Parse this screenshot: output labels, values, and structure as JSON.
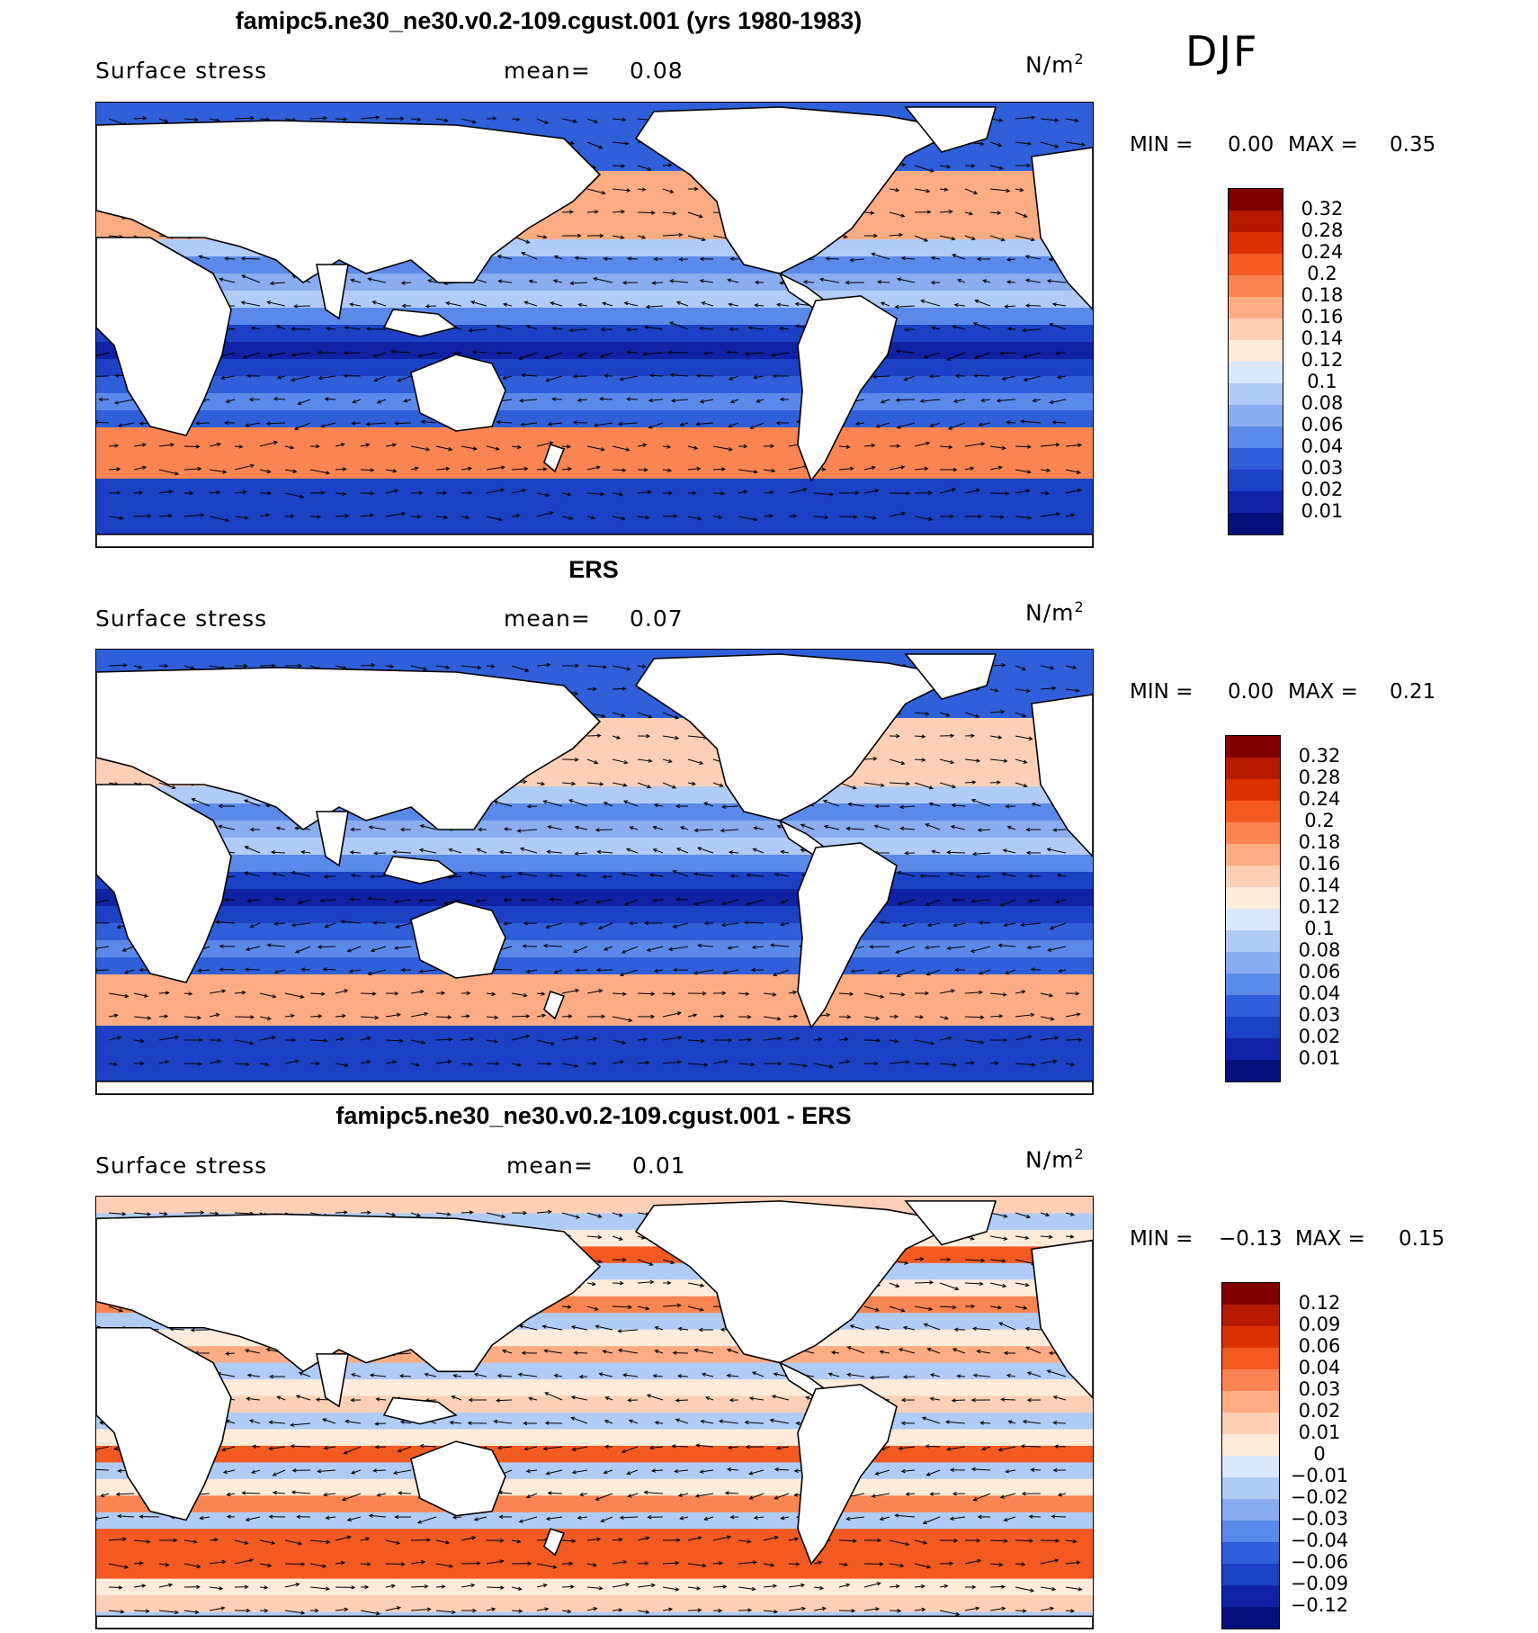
{
  "season": "DJF",
  "panels": [
    {
      "title": "famipc5.ne30_ne30.v0.2-109.cgust.001 (yrs 1980-1983)",
      "variable": "Surface stress",
      "mean_label": "mean=",
      "mean_value": "0.08",
      "units_base": "N/m",
      "units_exp": "2",
      "min_label": "MIN =",
      "min_value": "0.00",
      "max_label": "MAX =",
      "max_value": "0.35",
      "cbar_levels": [
        "0.32",
        "0.28",
        "0.24",
        "0.2",
        "0.18",
        "0.16",
        "0.14",
        "0.12",
        "0.1",
        "0.08",
        "0.06",
        "0.04",
        "0.03",
        "0.02",
        "0.01"
      ],
      "cbar_colors": [
        "#800000",
        "#b51a00",
        "#dd3000",
        "#f25a22",
        "#fb8552",
        "#fcac83",
        "#fdd0b5",
        "#feebda",
        "#d9e8fa",
        "#b0cbf5",
        "#8aadf0",
        "#5b89ea",
        "#2f5fd9",
        "#1c41c4",
        "#0f22a3",
        "#05107a"
      ]
    },
    {
      "title": "ERS",
      "variable": "Surface stress",
      "mean_label": "mean=",
      "mean_value": "0.07",
      "units_base": "N/m",
      "units_exp": "2",
      "min_label": "MIN =",
      "min_value": "0.00",
      "max_label": "MAX =",
      "max_value": "0.21",
      "cbar_levels": [
        "0.32",
        "0.28",
        "0.24",
        "0.2",
        "0.18",
        "0.16",
        "0.14",
        "0.12",
        "0.1",
        "0.08",
        "0.06",
        "0.04",
        "0.03",
        "0.02",
        "0.01"
      ],
      "cbar_colors": [
        "#800000",
        "#b51a00",
        "#dd3000",
        "#f25a22",
        "#fb8552",
        "#fcac83",
        "#fdd0b5",
        "#feebda",
        "#d9e8fa",
        "#b0cbf5",
        "#8aadf0",
        "#5b89ea",
        "#2f5fd9",
        "#1c41c4",
        "#0f22a3",
        "#05107a"
      ]
    },
    {
      "title": "famipc5.ne30_ne30.v0.2-109.cgust.001 - ERS",
      "variable": "Surface stress",
      "mean_label": "mean=",
      "mean_value": "0.01",
      "units_base": "N/m",
      "units_exp": "2",
      "min_label": "MIN =",
      "min_value": "−0.13",
      "max_label": "MAX =",
      "max_value": "0.15",
      "cbar_levels": [
        "0.12",
        "0.09",
        "0.06",
        "0.04",
        "0.03",
        "0.02",
        "0.01",
        "0",
        "−0.01",
        "−0.02",
        "−0.03",
        "−0.04",
        "−0.06",
        "−0.09",
        "−0.12"
      ],
      "cbar_colors": [
        "#800000",
        "#b51a00",
        "#dd3000",
        "#f25a22",
        "#fb8552",
        "#fcac83",
        "#fdd0b5",
        "#feebda",
        "#d9e8fa",
        "#b0cbf5",
        "#8aadf0",
        "#5b89ea",
        "#2f5fd9",
        "#1c41c4",
        "#0f22a3",
        "#05107a"
      ]
    }
  ],
  "chart_data": [
    {
      "type": "heatmap",
      "title": "famipc5.ne30_ne30.v0.2-109.cgust.001 (yrs 1980-1983)",
      "subtitle": "DJF",
      "variable": "Surface stress",
      "units": "N/m2",
      "mean": 0.08,
      "min": 0.0,
      "max": 0.35,
      "levels": [
        0.01,
        0.02,
        0.03,
        0.04,
        0.06,
        0.08,
        0.1,
        0.12,
        0.14,
        0.16,
        0.18,
        0.2,
        0.24,
        0.28,
        0.32
      ]
    },
    {
      "type": "heatmap",
      "title": "ERS",
      "variable": "Surface stress",
      "units": "N/m2",
      "mean": 0.07,
      "min": 0.0,
      "max": 0.21,
      "levels": [
        0.01,
        0.02,
        0.03,
        0.04,
        0.06,
        0.08,
        0.1,
        0.12,
        0.14,
        0.16,
        0.18,
        0.2,
        0.24,
        0.28,
        0.32
      ]
    },
    {
      "type": "heatmap",
      "title": "famipc5.ne30_ne30.v0.2-109.cgust.001 - ERS",
      "variable": "Surface stress",
      "units": "N/m2",
      "mean": 0.01,
      "min": -0.13,
      "max": 0.15,
      "levels": [
        -0.12,
        -0.09,
        -0.06,
        -0.04,
        -0.03,
        -0.02,
        -0.01,
        0,
        0.01,
        0.02,
        0.03,
        0.04,
        0.06,
        0.09,
        0.12
      ]
    }
  ]
}
